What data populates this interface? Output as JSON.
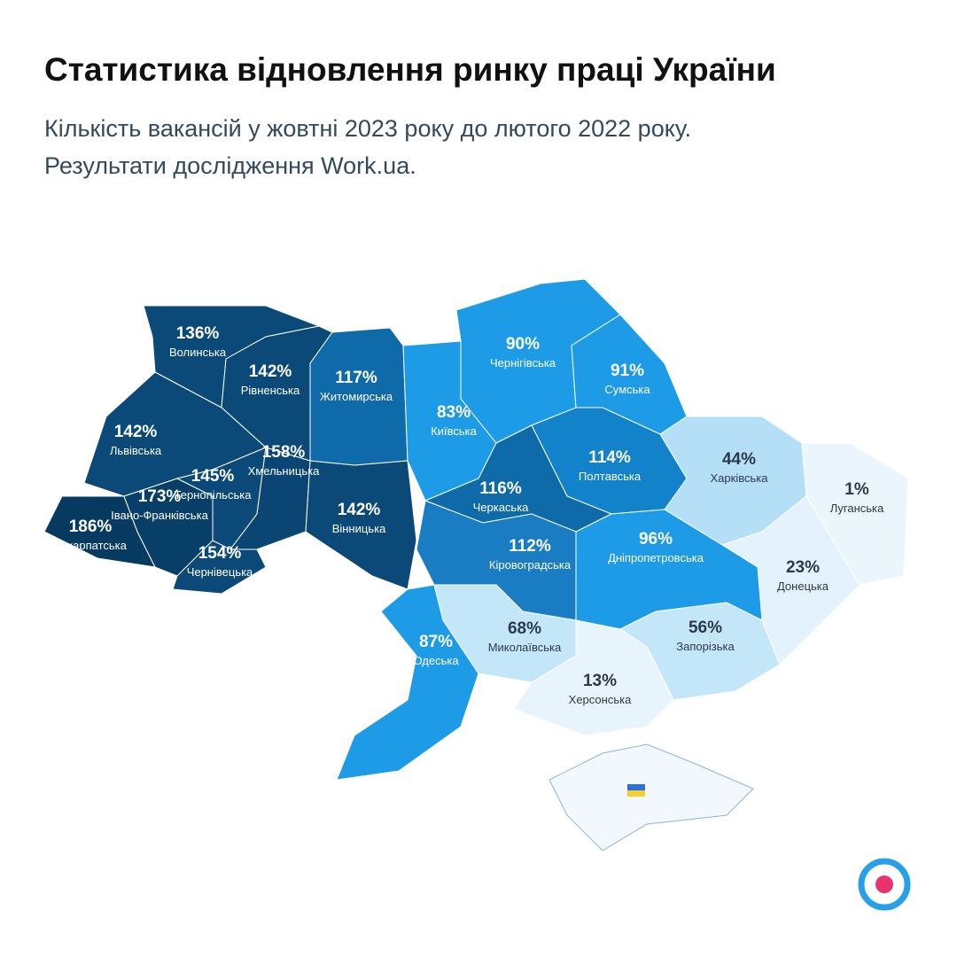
{
  "header": {
    "title": "Статистика відновлення ринку праці України",
    "subtitle_lines": [
      "Кількість вакансій у жовтні 2023 року до лютого 2022 року.",
      "Результати дослідження Work.ua."
    ]
  },
  "map": {
    "regions": [
      {
        "name": "Волинська",
        "value": 136,
        "value_label": "136%",
        "color": "#0b4a78"
      },
      {
        "name": "Рівненська",
        "value": 142,
        "value_label": "142%",
        "color": "#0b4a78"
      },
      {
        "name": "Житомирська",
        "value": 117,
        "value_label": "117%",
        "color": "#0e6aa8"
      },
      {
        "name": "Львівська",
        "value": 142,
        "value_label": "142%",
        "color": "#0b4a78"
      },
      {
        "name": "Закарпатська",
        "value": 186,
        "value_label": "186%",
        "color": "#073a61"
      },
      {
        "name": "Івано-Франківська",
        "value": 173,
        "value_label": "173%",
        "color": "#083f69"
      },
      {
        "name": "Тернопільська",
        "value": 145,
        "value_label": "145%",
        "color": "#0b4a78"
      },
      {
        "name": "Хмельницька",
        "value": 158,
        "value_label": "158%",
        "color": "#0a4574"
      },
      {
        "name": "Чернівецька",
        "value": 154,
        "value_label": "154%",
        "color": "#0b4a78"
      },
      {
        "name": "Вінницька",
        "value": 142,
        "value_label": "142%",
        "color": "#0b4a78"
      },
      {
        "name": "Київська",
        "value": 83,
        "value_label": "83%",
        "color": "#1e9be6"
      },
      {
        "name": "Чернігівська",
        "value": 90,
        "value_label": "90%",
        "color": "#1e9be6"
      },
      {
        "name": "Сумська",
        "value": 91,
        "value_label": "91%",
        "color": "#1e9be6"
      },
      {
        "name": "Полтавська",
        "value": 114,
        "value_label": "114%",
        "color": "#1282cb"
      },
      {
        "name": "Черкаська",
        "value": 116,
        "value_label": "116%",
        "color": "#0e6aa8"
      },
      {
        "name": "Харківська",
        "value": 44,
        "value_label": "44%",
        "color": "#b5dff7"
      },
      {
        "name": "Луганська",
        "value": 1,
        "value_label": "1%",
        "color": "#eaf5fc"
      },
      {
        "name": "Донецька",
        "value": 23,
        "value_label": "23%",
        "color": "#e3f2fc"
      },
      {
        "name": "Дніпропетровська",
        "value": 96,
        "value_label": "96%",
        "color": "#1e9be6"
      },
      {
        "name": "Кіровоградська",
        "value": 112,
        "value_label": "112%",
        "color": "#1a7cc3"
      },
      {
        "name": "Одеська",
        "value": 87,
        "value_label": "87%",
        "color": "#1e9be6"
      },
      {
        "name": "Миколаївська",
        "value": 68,
        "value_label": "68%",
        "color": "#c4e6f9"
      },
      {
        "name": "Запорізька",
        "value": 56,
        "value_label": "56%",
        "color": "#c4e6f9"
      },
      {
        "name": "Херсонська",
        "value": 13,
        "value_label": "13%",
        "color": "#e8f4fc"
      }
    ]
  }
}
